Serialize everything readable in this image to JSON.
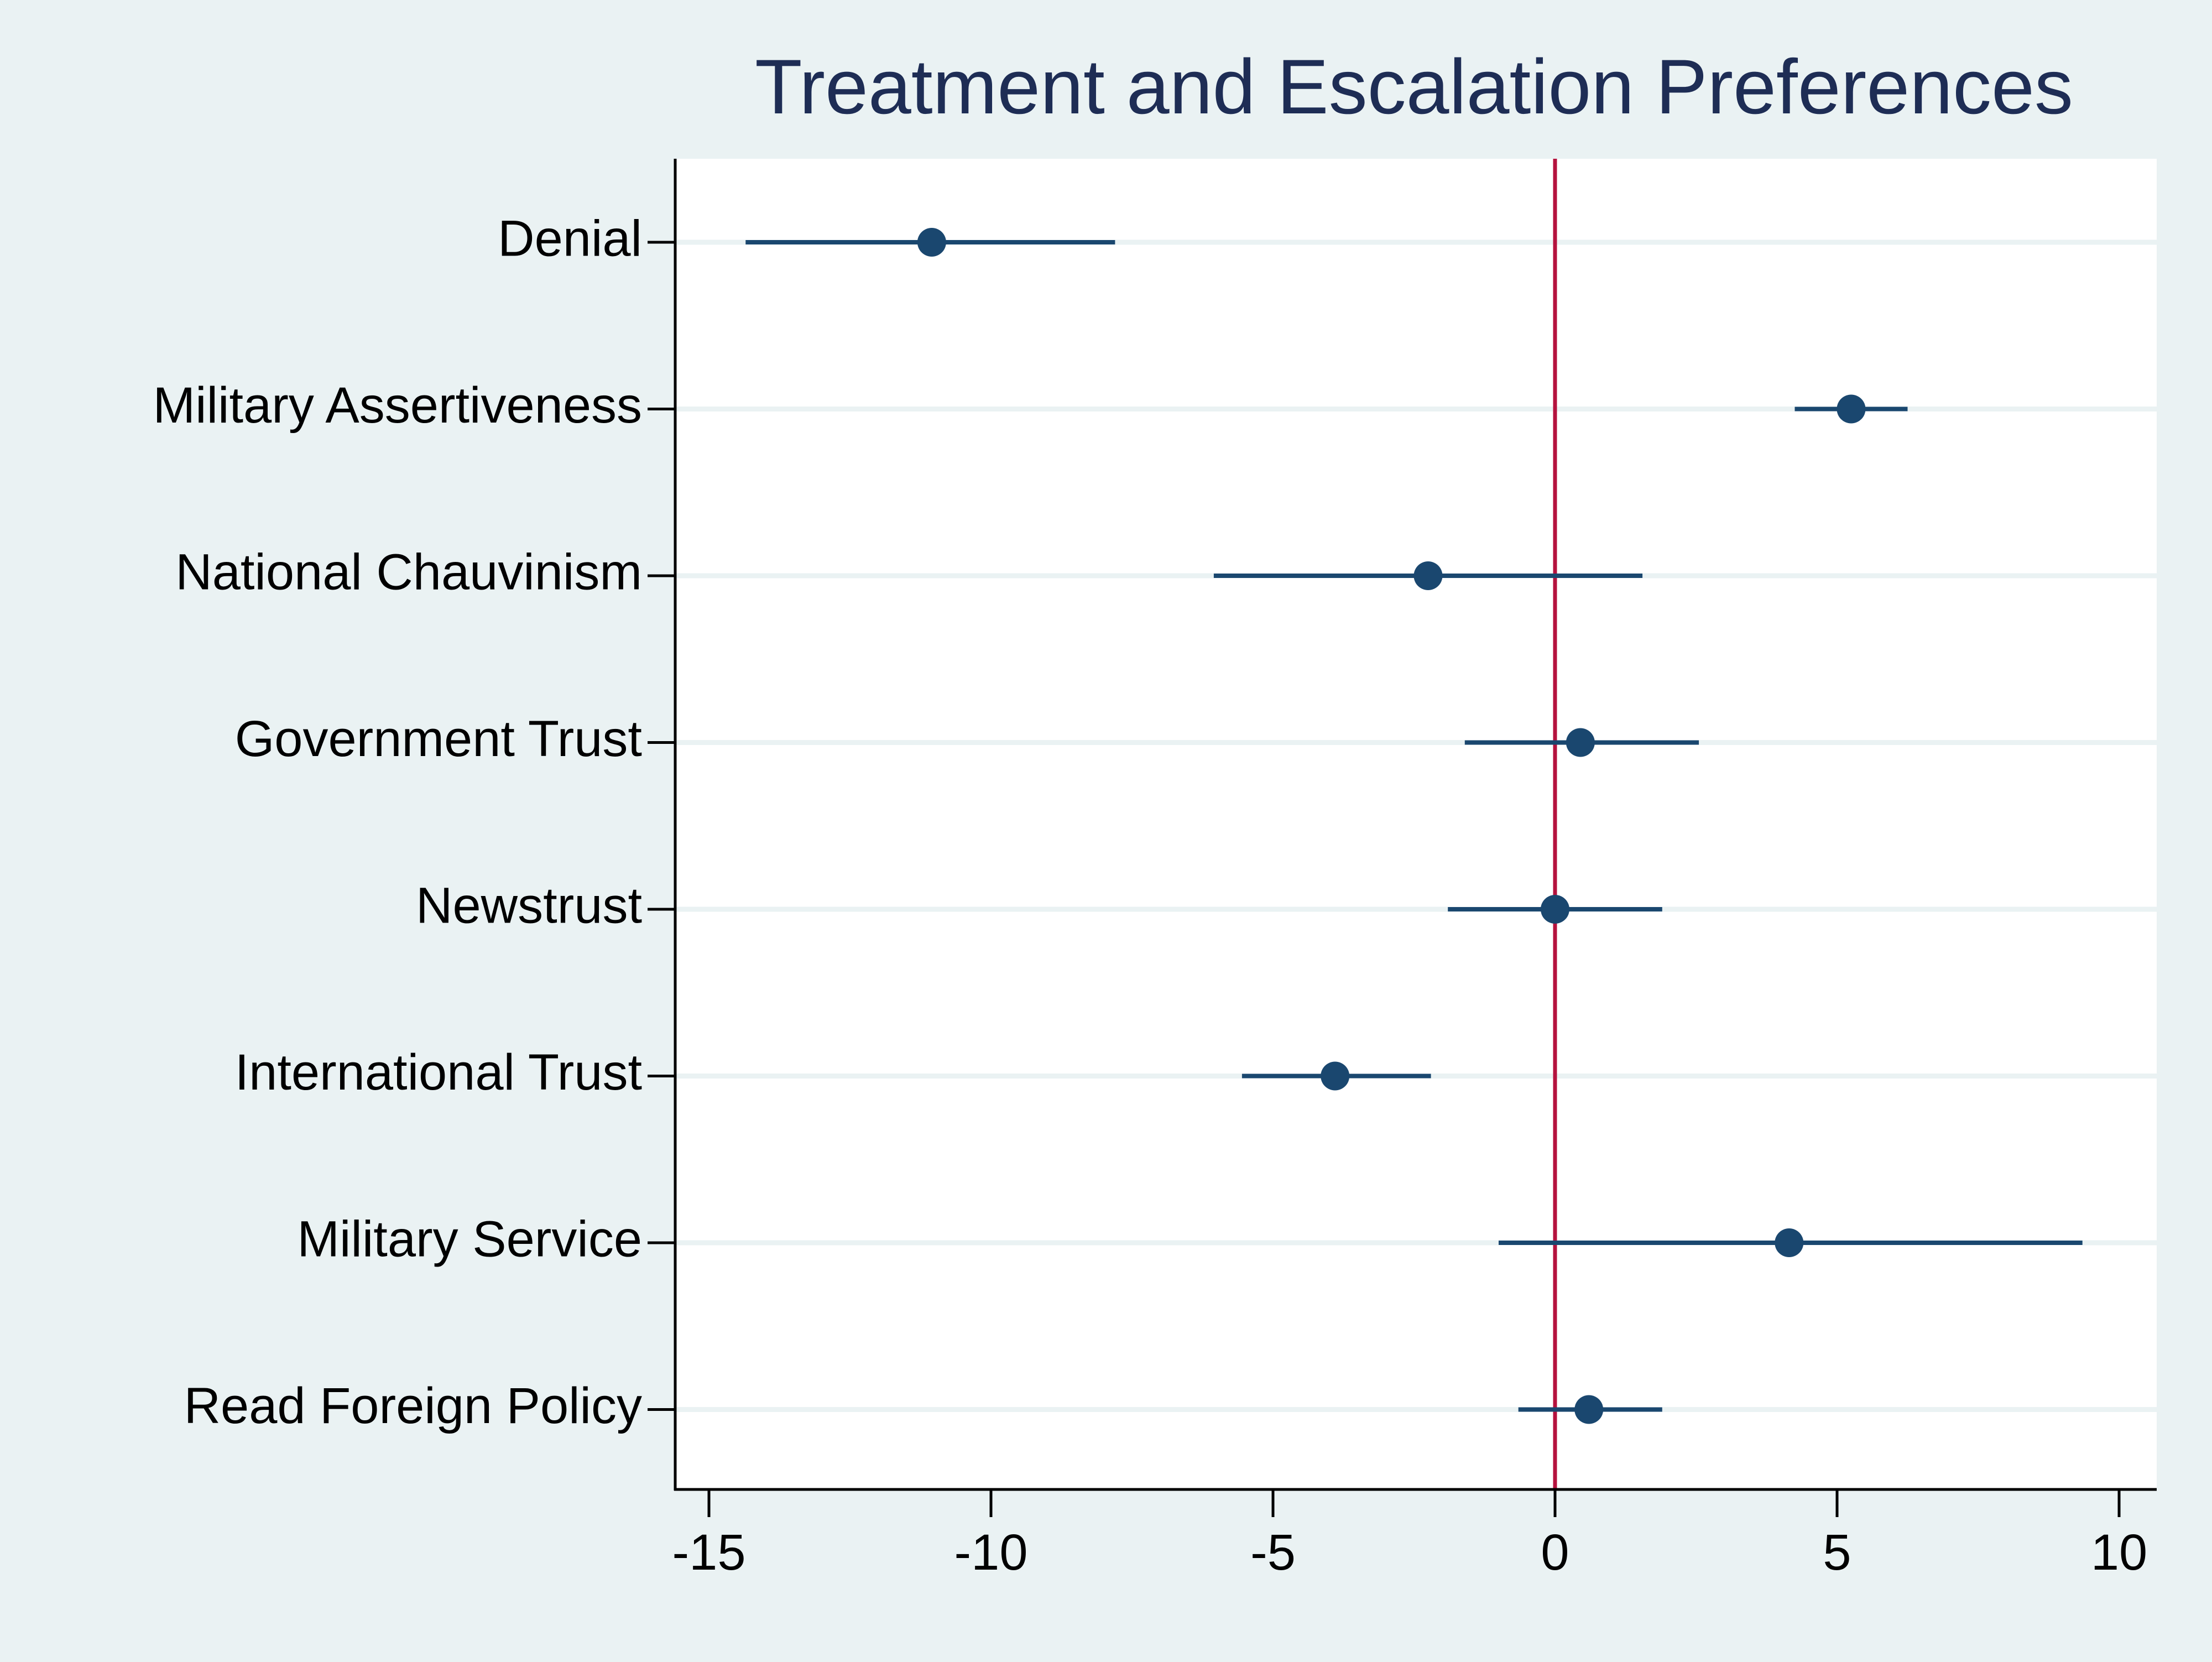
{
  "chart_data": {
    "type": "scatter",
    "title": "Treatment and Escalation Preferences",
    "xlabel": "",
    "ylabel": "",
    "xlim": [
      -15.6,
      10.6
    ],
    "x_ticks": [
      -15,
      -10,
      -5,
      0,
      5,
      10
    ],
    "x_tick_labels": [
      "-15",
      "-10",
      "-5",
      "0",
      "5",
      "10"
    ],
    "reference_line_x": 0,
    "grid": true,
    "legend": "none",
    "categories": [
      "Denial",
      "Military Assertiveness",
      "National Chauvinism",
      "Government Trust",
      "Newstrust",
      "International Trust",
      "Military Service",
      "Read Foreign Policy"
    ],
    "estimates": [
      -11.05,
      5.25,
      -2.25,
      0.45,
      0.0,
      -3.9,
      4.15,
      0.6
    ],
    "ci_lower": [
      -14.35,
      4.25,
      -6.05,
      -1.6,
      -1.9,
      -5.55,
      -1.0,
      -0.65
    ],
    "ci_upper": [
      -7.8,
      6.25,
      1.55,
      2.55,
      1.9,
      -2.2,
      9.35,
      1.9
    ],
    "colors": {
      "page_background": "#EAF2F3",
      "plot_background": "#FFFFFF",
      "marker": "#1A476F",
      "reference_line": "#B5123E",
      "title": "#1E2D55",
      "gridline": "#EAF2F3",
      "axis": "#000000"
    }
  }
}
